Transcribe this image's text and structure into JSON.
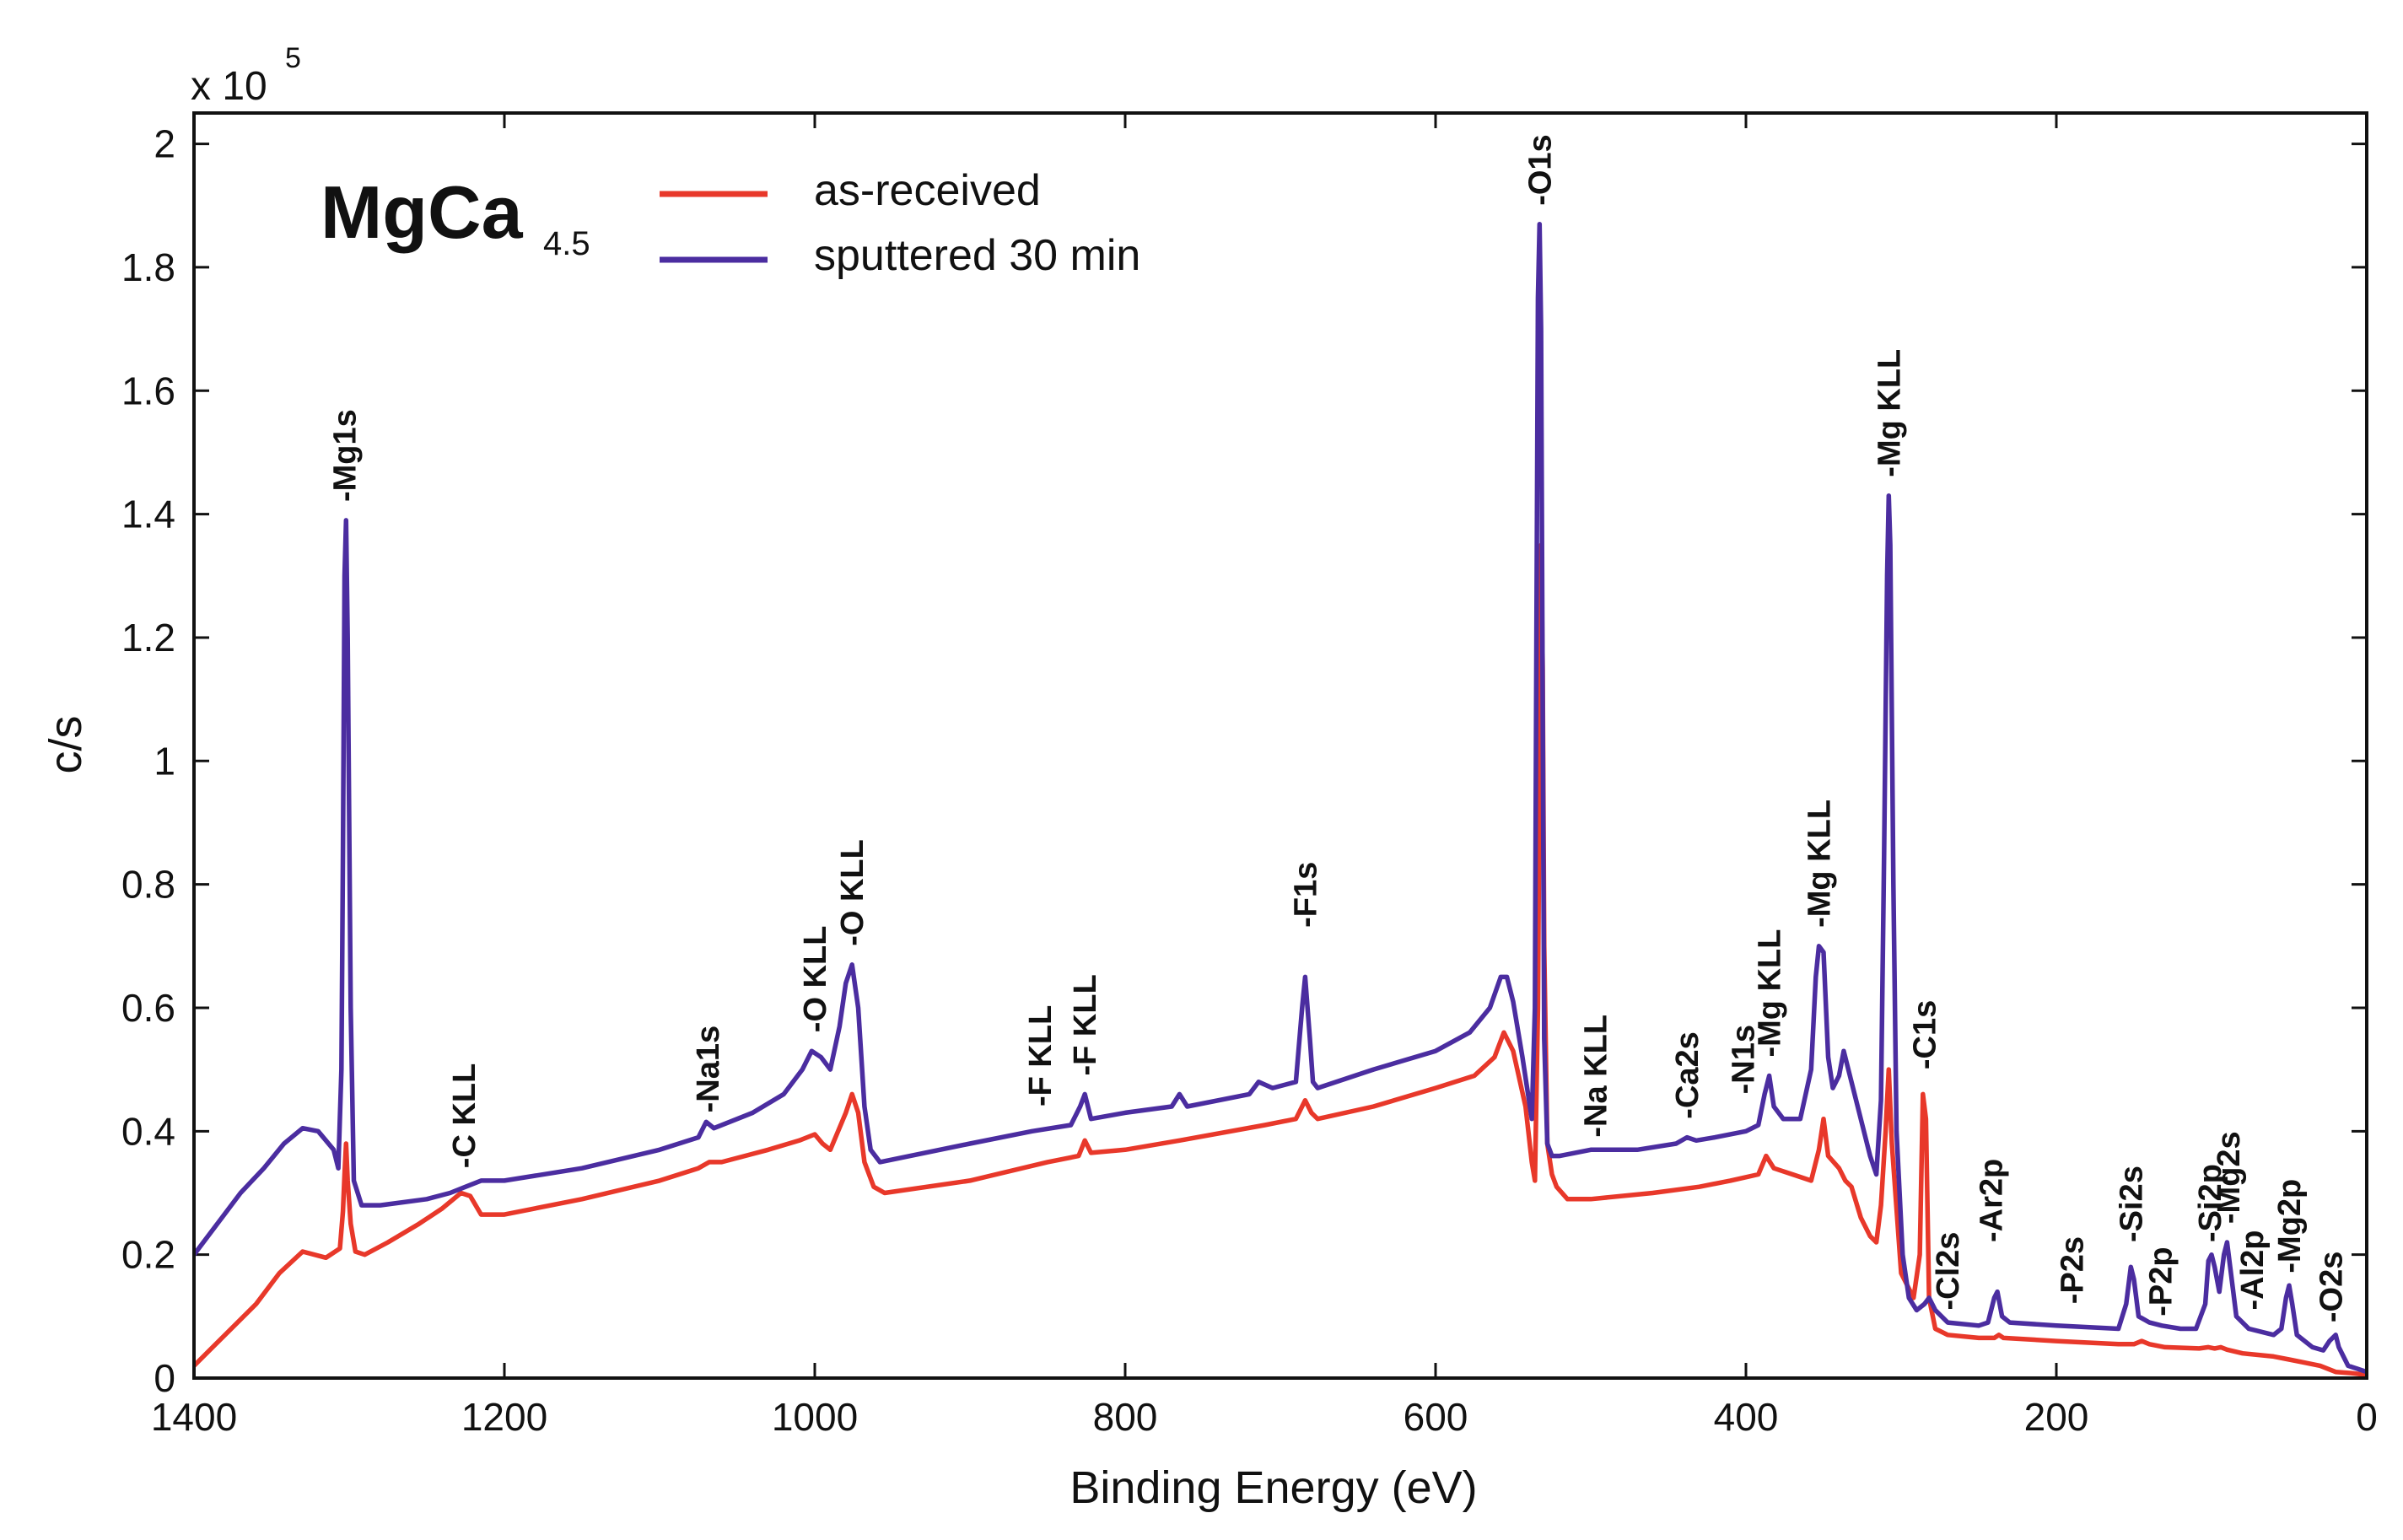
{
  "chart_data": {
    "type": "line",
    "title": "",
    "xlabel": "Binding Energy (eV)",
    "ylabel": "c/s",
    "y_multiplier": "x 10",
    "y_multiplier_exp": "5",
    "xlim": [
      1400,
      0
    ],
    "ylim": [
      0,
      2.05
    ],
    "x_reversed": true,
    "grid": false,
    "x_ticks": [
      1400,
      1200,
      1000,
      800,
      600,
      400,
      200,
      0
    ],
    "y_ticks": [
      0,
      0.2,
      0.4,
      0.6,
      0.8,
      1,
      1.2,
      1.4,
      1.6,
      1.8,
      2
    ],
    "y_tick_labels": [
      "0",
      "0.2",
      "0.4",
      "0.6",
      "0.8",
      "1",
      "1.2",
      "1.4",
      "1.6",
      "1.8",
      "2"
    ],
    "sample_label": {
      "main": "MgCa",
      "sub": "4.5"
    },
    "legend_position": "top-left",
    "series": [
      {
        "name": "as-received",
        "color": "#e8382a",
        "points": [
          [
            1400,
            0.02
          ],
          [
            1380,
            0.07
          ],
          [
            1360,
            0.12
          ],
          [
            1345,
            0.17
          ],
          [
            1330,
            0.205
          ],
          [
            1315,
            0.195
          ],
          [
            1306,
            0.21
          ],
          [
            1304,
            0.27
          ],
          [
            1303,
            0.33
          ],
          [
            1302,
            0.38
          ],
          [
            1301,
            0.32
          ],
          [
            1299,
            0.25
          ],
          [
            1296,
            0.205
          ],
          [
            1290,
            0.2
          ],
          [
            1275,
            0.22
          ],
          [
            1255,
            0.25
          ],
          [
            1240,
            0.275
          ],
          [
            1228,
            0.3
          ],
          [
            1222,
            0.295
          ],
          [
            1215,
            0.265
          ],
          [
            1200,
            0.265
          ],
          [
            1150,
            0.29
          ],
          [
            1100,
            0.32
          ],
          [
            1075,
            0.34
          ],
          [
            1068,
            0.35
          ],
          [
            1060,
            0.35
          ],
          [
            1030,
            0.37
          ],
          [
            1010,
            0.385
          ],
          [
            1000,
            0.395
          ],
          [
            995,
            0.38
          ],
          [
            990,
            0.37
          ],
          [
            980,
            0.43
          ],
          [
            976,
            0.46
          ],
          [
            972,
            0.43
          ],
          [
            968,
            0.35
          ],
          [
            962,
            0.31
          ],
          [
            955,
            0.3
          ],
          [
            900,
            0.32
          ],
          [
            850,
            0.35
          ],
          [
            830,
            0.36
          ],
          [
            826,
            0.385
          ],
          [
            822,
            0.365
          ],
          [
            800,
            0.37
          ],
          [
            765,
            0.385
          ],
          [
            710,
            0.41
          ],
          [
            690,
            0.42
          ],
          [
            684,
            0.45
          ],
          [
            680,
            0.43
          ],
          [
            676,
            0.42
          ],
          [
            640,
            0.44
          ],
          [
            600,
            0.47
          ],
          [
            575,
            0.49
          ],
          [
            562,
            0.52
          ],
          [
            556,
            0.56
          ],
          [
            550,
            0.53
          ],
          [
            542,
            0.44
          ],
          [
            538,
            0.35
          ],
          [
            536,
            0.32
          ],
          [
            534,
            0.6
          ],
          [
            533,
            1.0
          ],
          [
            532,
            1.35
          ],
          [
            531,
            1.15
          ],
          [
            530,
            0.7
          ],
          [
            528,
            0.38
          ],
          [
            525,
            0.33
          ],
          [
            522,
            0.31
          ],
          [
            515,
            0.29
          ],
          [
            500,
            0.29
          ],
          [
            460,
            0.3
          ],
          [
            430,
            0.31
          ],
          [
            410,
            0.32
          ],
          [
            392,
            0.33
          ],
          [
            387,
            0.36
          ],
          [
            382,
            0.34
          ],
          [
            370,
            0.33
          ],
          [
            358,
            0.32
          ],
          [
            353,
            0.37
          ],
          [
            350,
            0.42
          ],
          [
            347,
            0.36
          ],
          [
            340,
            0.34
          ],
          [
            336,
            0.32
          ],
          [
            332,
            0.31
          ],
          [
            326,
            0.26
          ],
          [
            320,
            0.23
          ],
          [
            316,
            0.22
          ],
          [
            313,
            0.28
          ],
          [
            310,
            0.4
          ],
          [
            309,
            0.45
          ],
          [
            308,
            0.5
          ],
          [
            306,
            0.38
          ],
          [
            300,
            0.17
          ],
          [
            292,
            0.13
          ],
          [
            288,
            0.2
          ],
          [
            286,
            0.46
          ],
          [
            284,
            0.42
          ],
          [
            282,
            0.13
          ],
          [
            278,
            0.08
          ],
          [
            270,
            0.07
          ],
          [
            250,
            0.065
          ],
          [
            240,
            0.065
          ],
          [
            237,
            0.07
          ],
          [
            234,
            0.065
          ],
          [
            200,
            0.06
          ],
          [
            160,
            0.055
          ],
          [
            150,
            0.055
          ],
          [
            145,
            0.06
          ],
          [
            140,
            0.055
          ],
          [
            130,
            0.05
          ],
          [
            108,
            0.048
          ],
          [
            102,
            0.05
          ],
          [
            98,
            0.048
          ],
          [
            94,
            0.05
          ],
          [
            90,
            0.046
          ],
          [
            80,
            0.04
          ],
          [
            60,
            0.035
          ],
          [
            50,
            0.03
          ],
          [
            40,
            0.025
          ],
          [
            30,
            0.02
          ],
          [
            20,
            0.01
          ],
          [
            10,
            0.008
          ],
          [
            0,
            0.005
          ]
        ]
      },
      {
        "name": "sputtered 30 min",
        "color": "#4b2da0",
        "points": [
          [
            1400,
            0.2
          ],
          [
            1385,
            0.25
          ],
          [
            1370,
            0.3
          ],
          [
            1355,
            0.34
          ],
          [
            1342,
            0.38
          ],
          [
            1330,
            0.405
          ],
          [
            1320,
            0.4
          ],
          [
            1310,
            0.37
          ],
          [
            1307,
            0.34
          ],
          [
            1305,
            0.5
          ],
          [
            1304,
            0.85
          ],
          [
            1303,
            1.3
          ],
          [
            1302,
            1.39
          ],
          [
            1301,
            1.2
          ],
          [
            1299,
            0.6
          ],
          [
            1297,
            0.32
          ],
          [
            1292,
            0.28
          ],
          [
            1280,
            0.28
          ],
          [
            1250,
            0.29
          ],
          [
            1235,
            0.3
          ],
          [
            1225,
            0.31
          ],
          [
            1215,
            0.32
          ],
          [
            1200,
            0.32
          ],
          [
            1150,
            0.34
          ],
          [
            1100,
            0.37
          ],
          [
            1075,
            0.39
          ],
          [
            1070,
            0.415
          ],
          [
            1065,
            0.405
          ],
          [
            1040,
            0.43
          ],
          [
            1020,
            0.46
          ],
          [
            1008,
            0.5
          ],
          [
            1002,
            0.53
          ],
          [
            996,
            0.52
          ],
          [
            990,
            0.5
          ],
          [
            984,
            0.57
          ],
          [
            980,
            0.64
          ],
          [
            976,
            0.67
          ],
          [
            972,
            0.6
          ],
          [
            968,
            0.44
          ],
          [
            964,
            0.37
          ],
          [
            958,
            0.35
          ],
          [
            900,
            0.38
          ],
          [
            860,
            0.4
          ],
          [
            835,
            0.41
          ],
          [
            829,
            0.44
          ],
          [
            826,
            0.46
          ],
          [
            822,
            0.42
          ],
          [
            800,
            0.43
          ],
          [
            770,
            0.44
          ],
          [
            765,
            0.46
          ],
          [
            760,
            0.44
          ],
          [
            720,
            0.46
          ],
          [
            714,
            0.48
          ],
          [
            705,
            0.47
          ],
          [
            690,
            0.48
          ],
          [
            686,
            0.6
          ],
          [
            684,
            0.65
          ],
          [
            681,
            0.55
          ],
          [
            679,
            0.48
          ],
          [
            676,
            0.47
          ],
          [
            640,
            0.5
          ],
          [
            600,
            0.53
          ],
          [
            578,
            0.56
          ],
          [
            565,
            0.6
          ],
          [
            558,
            0.65
          ],
          [
            554,
            0.65
          ],
          [
            550,
            0.61
          ],
          [
            544,
            0.52
          ],
          [
            538,
            0.42
          ],
          [
            536,
            0.6
          ],
          [
            535,
            1.2
          ],
          [
            534,
            1.75
          ],
          [
            533,
            1.87
          ],
          [
            532,
            1.7
          ],
          [
            531,
            1.1
          ],
          [
            530,
            0.55
          ],
          [
            528,
            0.38
          ],
          [
            525,
            0.36
          ],
          [
            520,
            0.36
          ],
          [
            500,
            0.37
          ],
          [
            470,
            0.37
          ],
          [
            445,
            0.38
          ],
          [
            438,
            0.39
          ],
          [
            432,
            0.385
          ],
          [
            420,
            0.39
          ],
          [
            400,
            0.4
          ],
          [
            392,
            0.41
          ],
          [
            388,
            0.46
          ],
          [
            385,
            0.49
          ],
          [
            382,
            0.44
          ],
          [
            376,
            0.42
          ],
          [
            365,
            0.42
          ],
          [
            358,
            0.5
          ],
          [
            355,
            0.65
          ],
          [
            353,
            0.7
          ],
          [
            350,
            0.69
          ],
          [
            347,
            0.52
          ],
          [
            344,
            0.47
          ],
          [
            340,
            0.49
          ],
          [
            337,
            0.53
          ],
          [
            334,
            0.5
          ],
          [
            330,
            0.46
          ],
          [
            325,
            0.41
          ],
          [
            320,
            0.36
          ],
          [
            316,
            0.33
          ],
          [
            313,
            0.45
          ],
          [
            311,
            0.85
          ],
          [
            309,
            1.3
          ],
          [
            308,
            1.43
          ],
          [
            307,
            1.35
          ],
          [
            305,
            0.8
          ],
          [
            303,
            0.4
          ],
          [
            299,
            0.2
          ],
          [
            295,
            0.13
          ],
          [
            290,
            0.11
          ],
          [
            285,
            0.12
          ],
          [
            282,
            0.13
          ],
          [
            278,
            0.11
          ],
          [
            270,
            0.09
          ],
          [
            250,
            0.085
          ],
          [
            244,
            0.09
          ],
          [
            240,
            0.13
          ],
          [
            238,
            0.14
          ],
          [
            235,
            0.1
          ],
          [
            230,
            0.09
          ],
          [
            200,
            0.085
          ],
          [
            160,
            0.08
          ],
          [
            155,
            0.12
          ],
          [
            152,
            0.18
          ],
          [
            150,
            0.16
          ],
          [
            147,
            0.1
          ],
          [
            140,
            0.09
          ],
          [
            132,
            0.085
          ],
          [
            120,
            0.08
          ],
          [
            110,
            0.08
          ],
          [
            104,
            0.12
          ],
          [
            102,
            0.19
          ],
          [
            100,
            0.2
          ],
          [
            98,
            0.18
          ],
          [
            95,
            0.14
          ],
          [
            92,
            0.2
          ],
          [
            90,
            0.22
          ],
          [
            88,
            0.18
          ],
          [
            84,
            0.1
          ],
          [
            76,
            0.08
          ],
          [
            60,
            0.07
          ],
          [
            55,
            0.08
          ],
          [
            52,
            0.13
          ],
          [
            50,
            0.15
          ],
          [
            48,
            0.12
          ],
          [
            45,
            0.07
          ],
          [
            35,
            0.05
          ],
          [
            28,
            0.045
          ],
          [
            24,
            0.06
          ],
          [
            20,
            0.07
          ],
          [
            18,
            0.05
          ],
          [
            12,
            0.02
          ],
          [
            6,
            0.015
          ],
          [
            0,
            0.01
          ]
        ]
      }
    ],
    "peak_labels": [
      {
        "text": "-Mg1s",
        "x": 1303,
        "y": 1.42
      },
      {
        "text": "-C KLL",
        "x": 1226,
        "y": 0.34
      },
      {
        "text": "-Na1s",
        "x": 1069,
        "y": 0.43
      },
      {
        "text": "-O KLL",
        "x": 1000,
        "y": 0.56
      },
      {
        "text": "-O KLL",
        "x": 976,
        "y": 0.7
      },
      {
        "text": "-F KLL",
        "x": 855,
        "y": 0.44
      },
      {
        "text": "-F KLL",
        "x": 826,
        "y": 0.49
      },
      {
        "text": "-F1s",
        "x": 684,
        "y": 0.73
      },
      {
        "text": "-O1s",
        "x": 533,
        "y": 1.9
      },
      {
        "text": "-Na KLL",
        "x": 497,
        "y": 0.39
      },
      {
        "text": "-Ca2s",
        "x": 438,
        "y": 0.42
      },
      {
        "text": "-N1s",
        "x": 402,
        "y": 0.46
      },
      {
        "text": "-Mg KLL",
        "x": 385,
        "y": 0.52
      },
      {
        "text": "-Mg KLL",
        "x": 353,
        "y": 0.73
      },
      {
        "text": "-Mg KLL",
        "x": 308,
        "y": 1.46
      },
      {
        "text": "-C1s",
        "x": 285,
        "y": 0.5
      },
      {
        "text": "-Cl2s",
        "x": 270,
        "y": 0.11
      },
      {
        "text": "-Ar2p",
        "x": 242,
        "y": 0.22
      },
      {
        "text": "-P2s",
        "x": 190,
        "y": 0.12
      },
      {
        "text": "-Si2s",
        "x": 152,
        "y": 0.22
      },
      {
        "text": "-P2p",
        "x": 133,
        "y": 0.1
      },
      {
        "text": "-Si2p",
        "x": 101,
        "y": 0.22
      },
      {
        "text": "-Mg2s",
        "x": 89,
        "y": 0.25
      },
      {
        "text": "-Al2p",
        "x": 74,
        "y": 0.11
      },
      {
        "text": "-Mg2p",
        "x": 50,
        "y": 0.17
      },
      {
        "text": "-O2s",
        "x": 23,
        "y": 0.09
      }
    ]
  }
}
